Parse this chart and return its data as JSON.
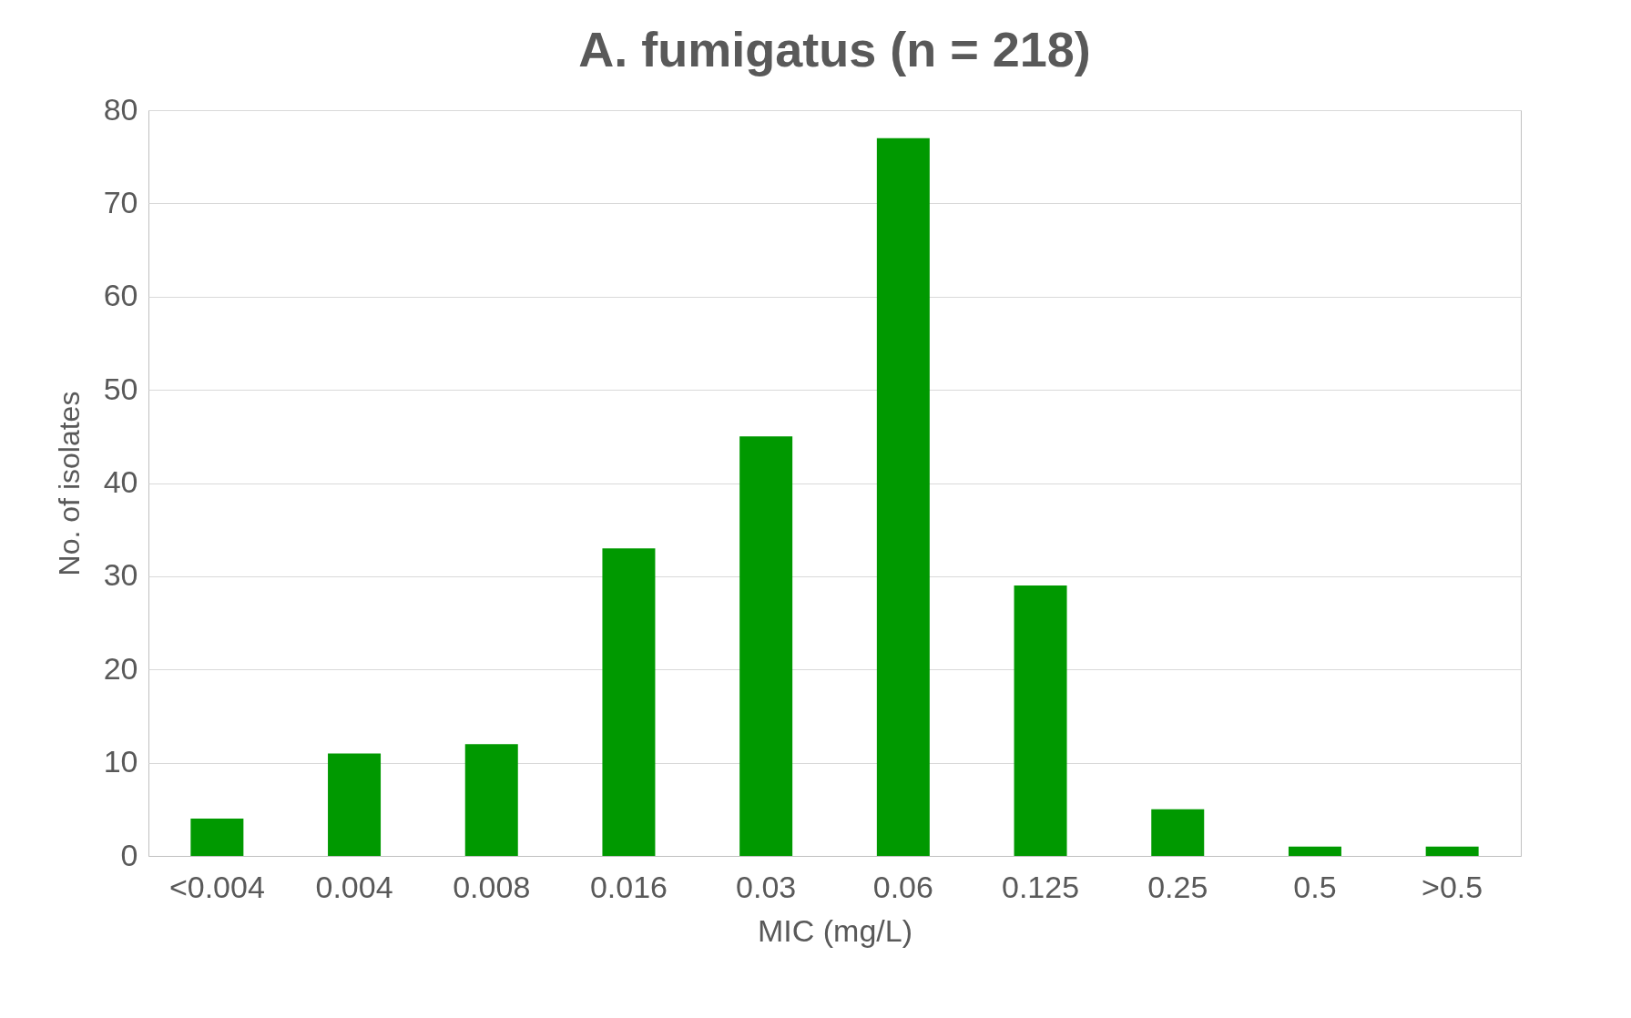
{
  "chart_data": {
    "type": "bar",
    "title": "A. fumigatus (n = 218)",
    "xlabel": "MIC (mg/L)",
    "ylabel": "No. of isolates",
    "categories": [
      "<0.004",
      "0.004",
      "0.008",
      "0.016",
      "0.03",
      "0.06",
      "0.125",
      "0.25",
      "0.5",
      ">0.5"
    ],
    "values": [
      4,
      11,
      12,
      33,
      45,
      77,
      29,
      5,
      1,
      1
    ],
    "color": "#009900",
    "ylim": [
      0,
      80
    ],
    "yticks": [
      0,
      10,
      20,
      30,
      40,
      50,
      60,
      70,
      80
    ],
    "grid": "y"
  }
}
